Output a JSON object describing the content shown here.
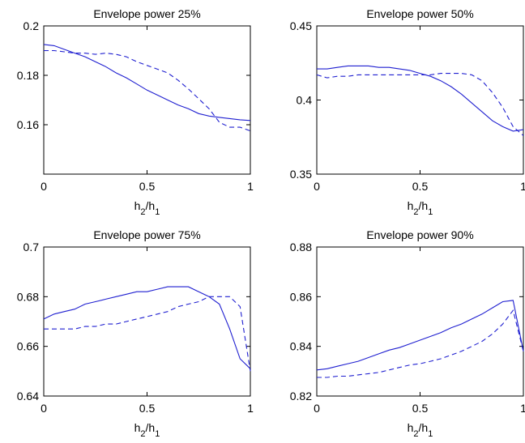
{
  "figure": {
    "line_color": "#1f1fd0"
  },
  "chart_data": [
    {
      "type": "line",
      "title": "Envelope power 25%",
      "xlabel": "h_2/h_1",
      "xlim": [
        0,
        1
      ],
      "ylim": [
        0.14,
        0.2
      ],
      "xticks": [
        0,
        0.5,
        1
      ],
      "xtick_labels": [
        "0",
        "0.5",
        "1"
      ],
      "yticks": [
        0.16,
        0.18,
        0.2
      ],
      "ytick_labels": [
        "0.16",
        "0.18",
        "0.2"
      ],
      "x": [
        0,
        0.05,
        0.1,
        0.15,
        0.2,
        0.25,
        0.3,
        0.35,
        0.4,
        0.45,
        0.5,
        0.55,
        0.6,
        0.65,
        0.7,
        0.75,
        0.8,
        0.85,
        0.9,
        0.95,
        1
      ],
      "series": [
        {
          "style": "solid",
          "values": [
            0.1925,
            0.192,
            0.1905,
            0.189,
            0.1875,
            0.1855,
            0.1835,
            0.181,
            0.179,
            0.1765,
            0.174,
            0.172,
            0.17,
            0.168,
            0.1665,
            0.1645,
            0.1635,
            0.163,
            0.1625,
            0.162,
            0.1617
          ]
        },
        {
          "style": "dashed",
          "values": [
            0.19,
            0.19,
            0.1895,
            0.189,
            0.189,
            0.1885,
            0.189,
            0.1885,
            0.1875,
            0.1855,
            0.184,
            0.1825,
            0.181,
            0.178,
            0.1745,
            0.1705,
            0.1665,
            0.161,
            0.159,
            0.159,
            0.1575
          ]
        }
      ]
    },
    {
      "type": "line",
      "title": "Envelope power 50%",
      "xlabel": "h_2/h_1",
      "xlim": [
        0,
        1
      ],
      "ylim": [
        0.35,
        0.45
      ],
      "xticks": [
        0,
        0.5,
        1
      ],
      "xtick_labels": [
        "0",
        "0.5",
        "1"
      ],
      "yticks": [
        0.35,
        0.4,
        0.45
      ],
      "ytick_labels": [
        "0.35",
        "0.4",
        "0.45"
      ],
      "x": [
        0,
        0.05,
        0.1,
        0.15,
        0.2,
        0.25,
        0.3,
        0.35,
        0.4,
        0.45,
        0.5,
        0.55,
        0.6,
        0.65,
        0.7,
        0.75,
        0.8,
        0.85,
        0.9,
        0.95,
        1
      ],
      "series": [
        {
          "style": "solid",
          "values": [
            0.421,
            0.421,
            0.422,
            0.423,
            0.423,
            0.423,
            0.422,
            0.422,
            0.421,
            0.42,
            0.418,
            0.416,
            0.413,
            0.409,
            0.404,
            0.398,
            0.392,
            0.386,
            0.382,
            0.379,
            0.38
          ]
        },
        {
          "style": "dashed",
          "values": [
            0.417,
            0.415,
            0.416,
            0.416,
            0.417,
            0.417,
            0.417,
            0.417,
            0.417,
            0.417,
            0.417,
            0.417,
            0.418,
            0.418,
            0.418,
            0.417,
            0.413,
            0.405,
            0.395,
            0.382,
            0.376
          ]
        }
      ]
    },
    {
      "type": "line",
      "title": "Envelope power 75%",
      "xlabel": "h_2/h_1",
      "xlim": [
        0,
        1
      ],
      "ylim": [
        0.64,
        0.7
      ],
      "xticks": [
        0,
        0.5,
        1
      ],
      "xtick_labels": [
        "0",
        "0.5",
        "1"
      ],
      "yticks": [
        0.64,
        0.66,
        0.68,
        0.7
      ],
      "ytick_labels": [
        "0.64",
        "0.66",
        "0.68",
        "0.7"
      ],
      "x": [
        0,
        0.05,
        0.1,
        0.15,
        0.2,
        0.25,
        0.3,
        0.35,
        0.4,
        0.45,
        0.5,
        0.55,
        0.6,
        0.65,
        0.7,
        0.75,
        0.8,
        0.85,
        0.9,
        0.95,
        1
      ],
      "series": [
        {
          "style": "solid",
          "values": [
            0.671,
            0.673,
            0.674,
            0.675,
            0.677,
            0.678,
            0.679,
            0.68,
            0.681,
            0.682,
            0.682,
            0.683,
            0.684,
            0.684,
            0.684,
            0.682,
            0.68,
            0.677,
            0.667,
            0.655,
            0.651
          ]
        },
        {
          "style": "dashed",
          "values": [
            0.667,
            0.667,
            0.667,
            0.667,
            0.668,
            0.668,
            0.669,
            0.669,
            0.67,
            0.671,
            0.672,
            0.673,
            0.674,
            0.676,
            0.677,
            0.678,
            0.68,
            0.68,
            0.68,
            0.676,
            0.65
          ]
        }
      ]
    },
    {
      "type": "line",
      "title": "Envelope power 90%",
      "xlabel": "h_2/h_1",
      "xlim": [
        0,
        1
      ],
      "ylim": [
        0.82,
        0.88
      ],
      "xticks": [
        0,
        0.5,
        1
      ],
      "xtick_labels": [
        "0",
        "0.5",
        "1"
      ],
      "yticks": [
        0.82,
        0.84,
        0.86,
        0.88
      ],
      "ytick_labels": [
        "0.82",
        "0.84",
        "0.86",
        "0.88"
      ],
      "x": [
        0,
        0.05,
        0.1,
        0.15,
        0.2,
        0.25,
        0.3,
        0.35,
        0.4,
        0.45,
        0.5,
        0.55,
        0.6,
        0.65,
        0.7,
        0.75,
        0.8,
        0.85,
        0.9,
        0.95,
        1
      ],
      "series": [
        {
          "style": "solid",
          "values": [
            0.8305,
            0.831,
            0.832,
            0.833,
            0.834,
            0.8355,
            0.837,
            0.8385,
            0.8395,
            0.841,
            0.8425,
            0.844,
            0.8455,
            0.8475,
            0.849,
            0.851,
            0.853,
            0.8555,
            0.858,
            0.8585,
            0.838
          ]
        },
        {
          "style": "dashed",
          "values": [
            0.8275,
            0.8275,
            0.828,
            0.828,
            0.8285,
            0.829,
            0.8295,
            0.8305,
            0.8315,
            0.8325,
            0.833,
            0.834,
            0.835,
            0.8365,
            0.838,
            0.84,
            0.842,
            0.845,
            0.849,
            0.8545,
            0.838
          ]
        }
      ]
    }
  ]
}
